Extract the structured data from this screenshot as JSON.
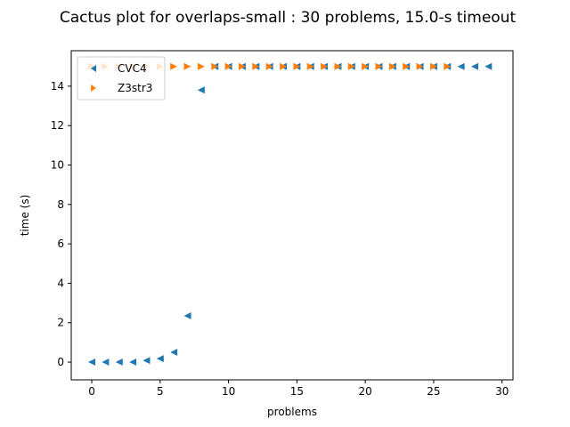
{
  "chart_data": {
    "type": "scatter",
    "title": "Cactus plot for overlaps-small : 30 problems, 15.0-s timeout",
    "xlabel": "problems",
    "ylabel": "time (s)",
    "xlim": [
      -1.5,
      30.8
    ],
    "ylim": [
      -0.9,
      15.8
    ],
    "xticks": [
      0,
      5,
      10,
      15,
      20,
      25,
      30
    ],
    "yticks": [
      0,
      2,
      4,
      6,
      8,
      10,
      12,
      14
    ],
    "grid": false,
    "legend_position": "top-left",
    "series": [
      {
        "name": "CVC4",
        "marker": "triangle-left",
        "color": "#1f77b4",
        "x": [
          0,
          1,
          2,
          3,
          4,
          5,
          6,
          7,
          8,
          9,
          10,
          11,
          12,
          13,
          14,
          15,
          16,
          17,
          18,
          19,
          20,
          21,
          22,
          23,
          24,
          25,
          26,
          27,
          28,
          29
        ],
        "y": [
          0.0,
          0.0,
          0.0,
          0.0,
          0.08,
          0.18,
          0.5,
          2.35,
          13.8,
          15,
          15,
          15,
          15,
          15,
          15,
          15,
          15,
          15,
          15,
          15,
          15,
          15,
          15,
          15,
          15,
          15,
          15,
          15,
          15,
          15
        ]
      },
      {
        "name": "Z3str3",
        "marker": "triangle-right",
        "color": "#ff7f0e",
        "x": [
          0,
          1,
          2,
          3,
          4,
          5,
          6,
          7,
          8,
          9,
          10,
          11,
          12,
          13,
          14,
          15,
          16,
          17,
          18,
          19,
          20,
          21,
          22,
          23,
          24,
          25,
          26
        ],
        "y": [
          15,
          15,
          15,
          15,
          15,
          15,
          15,
          15,
          15,
          15,
          15,
          15,
          15,
          15,
          15,
          15,
          15,
          15,
          15,
          15,
          15,
          15,
          15,
          15,
          15,
          15,
          15
        ]
      }
    ]
  }
}
